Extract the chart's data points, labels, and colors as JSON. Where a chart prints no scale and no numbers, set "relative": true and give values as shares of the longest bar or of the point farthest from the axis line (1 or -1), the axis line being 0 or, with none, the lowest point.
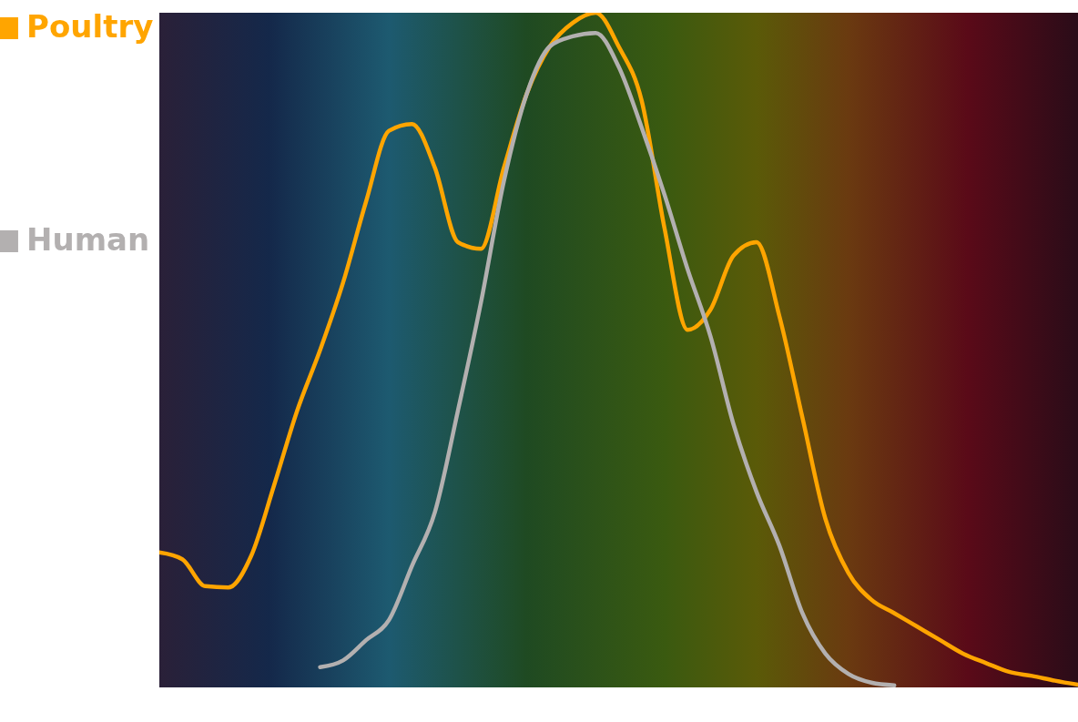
{
  "chart_data": {
    "type": "line",
    "relative": true,
    "legend": "left",
    "categories": [
      null,
      null,
      null,
      null,
      null,
      null,
      null,
      null,
      null,
      null,
      null,
      null,
      null,
      null,
      null,
      null,
      null,
      null,
      null,
      null,
      null,
      null,
      null,
      null,
      null,
      null,
      null,
      null,
      null,
      null,
      null,
      null,
      null,
      null,
      null,
      null,
      null,
      null,
      null,
      null,
      null
    ],
    "series": [
      {
        "name": "Poultry",
        "color": "#ffa500",
        "values": [
          0.2,
          0.19,
          0.15,
          0.148,
          0.195,
          0.3,
          0.41,
          0.5,
          0.6,
          0.72,
          0.825,
          0.835,
          0.77,
          0.66,
          0.65,
          0.77,
          0.88,
          0.95,
          0.985,
          1.0,
          0.95,
          0.87,
          0.68,
          0.53,
          0.56,
          0.64,
          0.66,
          0.55,
          0.4,
          0.25,
          0.17,
          0.13,
          0.11,
          0.09,
          0.07,
          0.05,
          0.036,
          0.023,
          0.017,
          0.01,
          0.004
        ]
      },
      {
        "name": "Human",
        "color": "#b3b0b0",
        "values": [
          null,
          null,
          null,
          null,
          null,
          null,
          null,
          0.03,
          0.04,
          0.07,
          0.1,
          0.18,
          0.26,
          0.41,
          0.57,
          0.75,
          0.88,
          0.95,
          0.965,
          0.97,
          0.92,
          0.83,
          0.73,
          0.62,
          0.52,
          0.39,
          0.29,
          0.21,
          0.11,
          0.05,
          0.02,
          0.007,
          0.003,
          null,
          null,
          null,
          null,
          null,
          null,
          null,
          null
        ]
      }
    ]
  }
}
